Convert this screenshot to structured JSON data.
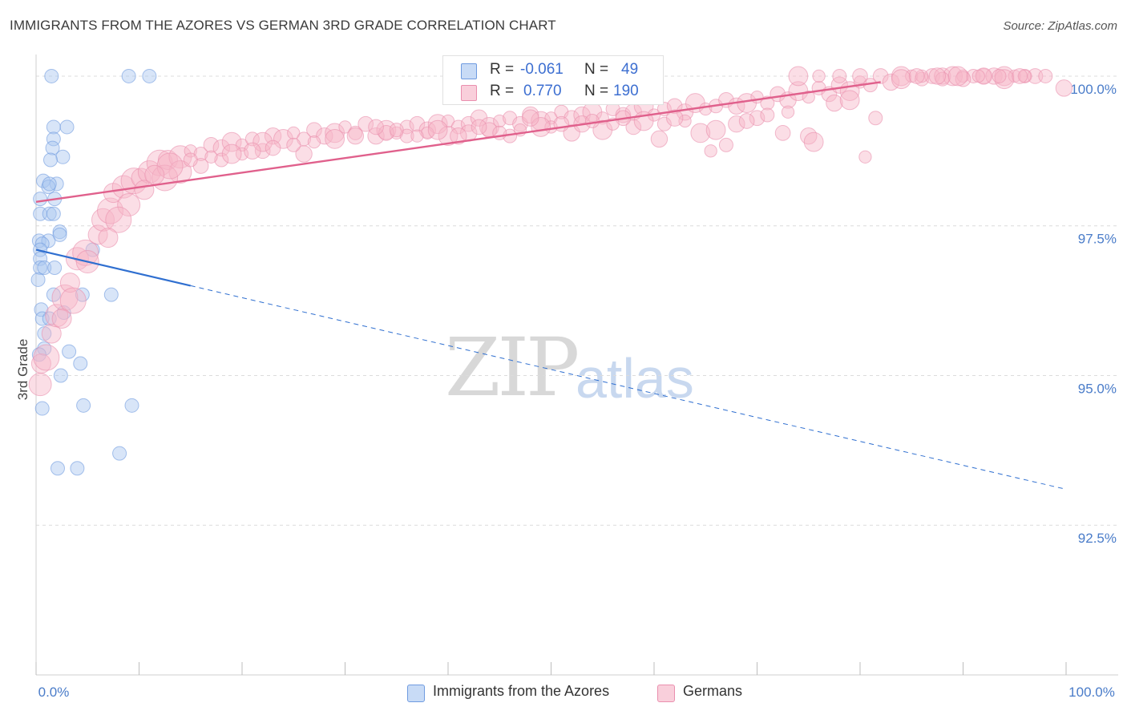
{
  "title": "IMMIGRANTS FROM THE AZORES VS GERMAN 3RD GRADE CORRELATION CHART",
  "source": "Source: ZipAtlas.com",
  "watermark": {
    "zip": "ZIP",
    "atlas": "atlas"
  },
  "legend_top": {
    "rows": [
      {
        "r_label": "R =",
        "r_value": "-0.061",
        "n_label": "N =",
        "n_value": "49",
        "color": "#a9c6f0"
      },
      {
        "r_label": "R =",
        "r_value": "0.770",
        "n_label": "N =",
        "n_value": "190",
        "color": "#f6b6c8"
      }
    ]
  },
  "legend_bottom": {
    "items": [
      {
        "label": "Immigrants from the Azores",
        "color": "#a9c6f0"
      },
      {
        "label": "Germans",
        "color": "#f6b6c8"
      }
    ]
  },
  "chart_data": {
    "type": "scatter",
    "title": "IMMIGRANTS FROM THE AZORES VS GERMAN 3RD GRADE CORRELATION CHART",
    "xlabel": "",
    "ylabel": "3rd Grade",
    "xlim": [
      0,
      100
    ],
    "ylim": [
      90.0,
      100.2
    ],
    "x_tick_labels": [
      {
        "value": 0,
        "label": "0.0%"
      },
      {
        "value": 100,
        "label": "100.0%"
      }
    ],
    "x_minor_ticks": [
      0,
      10,
      20,
      30,
      40,
      50,
      60,
      70,
      80,
      90,
      100
    ],
    "y_ticks": [
      {
        "value": 100.0,
        "label": "100.0%"
      },
      {
        "value": 97.5,
        "label": "97.5%"
      },
      {
        "value": 95.0,
        "label": "95.0%"
      },
      {
        "value": 92.5,
        "label": "92.5%"
      }
    ],
    "grid": true,
    "series": [
      {
        "name": "Immigrants from the Azores",
        "color": "#a9c6f0",
        "edge": "#6f9be0",
        "trend": {
          "x0": 0,
          "y0": 97.1,
          "x1": 15,
          "y1": 96.5,
          "dash_to_x": 100,
          "dash_to_y": 93.1,
          "color": "#2f6fd0"
        },
        "points": [
          [
            1.5,
            100.0
          ],
          [
            9,
            100.0
          ],
          [
            11,
            100.0
          ],
          [
            1.7,
            99.15
          ],
          [
            3,
            99.15
          ],
          [
            1.7,
            98.95
          ],
          [
            1.6,
            98.8
          ],
          [
            2.6,
            98.65
          ],
          [
            1.4,
            98.6
          ],
          [
            0.7,
            98.25
          ],
          [
            2,
            98.2
          ],
          [
            1.2,
            98.15
          ],
          [
            1.3,
            98.2
          ],
          [
            0.4,
            97.95
          ],
          [
            1.8,
            97.95
          ],
          [
            0.4,
            97.7
          ],
          [
            1.3,
            97.7
          ],
          [
            1.7,
            97.7
          ],
          [
            2.3,
            97.4
          ],
          [
            2.3,
            97.35
          ],
          [
            0.3,
            97.25
          ],
          [
            1.2,
            97.25
          ],
          [
            0.6,
            97.2
          ],
          [
            0.4,
            97.1
          ],
          [
            5.5,
            97.1
          ],
          [
            0.4,
            96.95
          ],
          [
            0.4,
            96.8
          ],
          [
            0.8,
            96.8
          ],
          [
            1.8,
            96.8
          ],
          [
            1.7,
            96.35
          ],
          [
            4.5,
            96.35
          ],
          [
            7.3,
            96.35
          ],
          [
            0.5,
            96.1
          ],
          [
            0.6,
            95.95
          ],
          [
            2.7,
            96.05
          ],
          [
            1.3,
            95.95
          ],
          [
            0.8,
            95.7
          ],
          [
            0.8,
            95.45
          ],
          [
            3.2,
            95.4
          ],
          [
            0.3,
            95.35
          ],
          [
            4.3,
            95.2
          ],
          [
            2.4,
            95.0
          ],
          [
            0.6,
            94.45
          ],
          [
            4.6,
            94.5
          ],
          [
            9.3,
            94.5
          ],
          [
            8.1,
            93.7
          ],
          [
            4,
            93.45
          ],
          [
            2.1,
            93.45
          ],
          [
            0.2,
            96.6
          ]
        ]
      },
      {
        "name": "Germans",
        "color": "#f6b6c8",
        "edge": "#ea8fae",
        "trend": {
          "x0": 0,
          "y0": 97.9,
          "x1": 82,
          "y1": 99.9,
          "color": "#e0608c"
        },
        "points": [
          [
            0.5,
            95.2
          ],
          [
            0.4,
            94.85
          ],
          [
            1,
            95.3
          ],
          [
            1.5,
            95.7
          ],
          [
            2,
            96.0
          ],
          [
            2.8,
            96.3
          ],
          [
            3.3,
            96.55
          ],
          [
            4,
            96.95
          ],
          [
            4.8,
            97.05
          ],
          [
            6,
            97.35
          ],
          [
            6.5,
            97.6
          ],
          [
            7.2,
            97.75
          ],
          [
            7.5,
            98.05
          ],
          [
            8.5,
            98.15
          ],
          [
            9.5,
            98.25
          ],
          [
            10.2,
            98.3
          ],
          [
            11,
            98.4
          ],
          [
            12,
            98.55
          ],
          [
            12.8,
            98.6
          ],
          [
            14,
            98.65
          ],
          [
            15,
            98.75
          ],
          [
            16,
            98.7
          ],
          [
            17,
            98.85
          ],
          [
            18,
            98.8
          ],
          [
            19,
            98.9
          ],
          [
            20,
            98.85
          ],
          [
            21,
            98.95
          ],
          [
            22,
            98.75
          ],
          [
            23,
            99.0
          ],
          [
            24,
            98.95
          ],
          [
            25,
            99.05
          ],
          [
            26,
            98.95
          ],
          [
            27,
            99.1
          ],
          [
            28,
            99.0
          ],
          [
            29,
            99.05
          ],
          [
            30,
            99.15
          ],
          [
            31,
            99.05
          ],
          [
            32,
            99.2
          ],
          [
            33,
            99.0
          ],
          [
            34,
            99.1
          ],
          [
            35,
            99.05
          ],
          [
            36,
            99.15
          ],
          [
            37,
            99.2
          ],
          [
            38,
            99.1
          ],
          [
            39,
            99.2
          ],
          [
            40,
            99.25
          ],
          [
            41,
            99.15
          ],
          [
            42,
            99.2
          ],
          [
            43,
            99.3
          ],
          [
            44,
            99.15
          ],
          [
            45,
            99.25
          ],
          [
            46,
            99.3
          ],
          [
            47,
            99.2
          ],
          [
            48,
            99.35
          ],
          [
            49,
            99.25
          ],
          [
            50,
            99.3
          ],
          [
            51,
            99.4
          ],
          [
            52,
            99.3
          ],
          [
            53,
            99.35
          ],
          [
            54,
            99.4
          ],
          [
            55,
            99.3
          ],
          [
            56,
            99.45
          ],
          [
            57,
            99.35
          ],
          [
            58,
            99.4
          ],
          [
            59,
            99.5
          ],
          [
            60,
            99.35
          ],
          [
            61,
            99.45
          ],
          [
            62,
            99.5
          ],
          [
            63,
            99.4
          ],
          [
            64,
            99.55
          ],
          [
            65,
            99.45
          ],
          [
            66,
            99.5
          ],
          [
            67,
            99.6
          ],
          [
            68,
            99.5
          ],
          [
            69,
            99.55
          ],
          [
            70,
            99.65
          ],
          [
            71,
            99.55
          ],
          [
            72,
            99.7
          ],
          [
            73,
            99.6
          ],
          [
            74,
            99.75
          ],
          [
            75,
            99.65
          ],
          [
            76,
            99.8
          ],
          [
            77,
            99.7
          ],
          [
            78,
            99.85
          ],
          [
            79,
            99.75
          ],
          [
            80,
            99.9
          ],
          [
            81,
            99.85
          ],
          [
            82,
            100.0
          ],
          [
            83,
            99.9
          ],
          [
            84,
            100.0
          ],
          [
            85,
            100.0
          ],
          [
            86,
            99.95
          ],
          [
            87,
            100.0
          ],
          [
            88,
            100.0
          ],
          [
            89,
            100.0
          ],
          [
            90,
            100.0
          ],
          [
            91,
            100.0
          ],
          [
            92,
            100.0
          ],
          [
            93,
            100.0
          ],
          [
            94,
            100.0
          ],
          [
            95,
            100.0
          ],
          [
            96,
            100.0
          ],
          [
            97,
            100.0
          ],
          [
            99.8,
            99.8
          ],
          [
            74,
            100.0
          ],
          [
            76,
            100.0
          ],
          [
            78,
            100.0
          ],
          [
            80,
            100.0
          ],
          [
            60.5,
            98.95
          ],
          [
            64.5,
            99.05
          ],
          [
            65.5,
            98.75
          ],
          [
            67,
            98.85
          ],
          [
            72.5,
            99.05
          ],
          [
            75,
            99.0
          ],
          [
            75.5,
            98.9
          ],
          [
            80.5,
            98.65
          ],
          [
            81.5,
            99.3
          ],
          [
            58,
            99.15
          ],
          [
            52,
            99.05
          ],
          [
            55,
            99.1
          ],
          [
            50,
            99.15
          ],
          [
            46,
            99.0
          ],
          [
            44,
            99.1
          ],
          [
            42,
            99.05
          ],
          [
            40,
            99.0
          ],
          [
            38,
            99.05
          ],
          [
            36,
            99.0
          ],
          [
            34,
            99.05
          ],
          [
            26,
            98.7
          ],
          [
            22,
            98.9
          ],
          [
            20,
            98.7
          ],
          [
            18,
            98.6
          ],
          [
            16,
            98.5
          ],
          [
            14,
            98.4
          ],
          [
            12.5,
            98.3
          ],
          [
            10.5,
            98.1
          ],
          [
            9,
            97.85
          ],
          [
            8,
            97.6
          ],
          [
            7,
            97.3
          ],
          [
            5,
            96.9
          ],
          [
            3.6,
            96.25
          ],
          [
            2.5,
            95.95
          ],
          [
            70,
            99.3
          ],
          [
            68,
            99.2
          ],
          [
            66,
            99.1
          ],
          [
            63,
            99.25
          ],
          [
            61,
            99.2
          ],
          [
            57,
            99.3
          ],
          [
            53,
            99.2
          ],
          [
            49,
            99.15
          ],
          [
            47,
            99.1
          ],
          [
            45,
            99.05
          ],
          [
            43,
            99.15
          ],
          [
            41,
            99.0
          ],
          [
            39,
            99.1
          ],
          [
            37,
            99.0
          ],
          [
            35,
            99.1
          ],
          [
            33,
            99.15
          ],
          [
            31,
            99.0
          ],
          [
            29,
            98.95
          ],
          [
            27,
            98.9
          ],
          [
            25,
            98.85
          ],
          [
            23,
            98.8
          ],
          [
            21,
            98.75
          ],
          [
            19,
            98.7
          ],
          [
            17,
            98.65
          ],
          [
            15,
            98.6
          ],
          [
            13,
            98.5
          ],
          [
            11.5,
            98.35
          ],
          [
            84,
            99.95
          ],
          [
            86,
            100.0
          ],
          [
            88,
            99.95
          ],
          [
            90,
            99.95
          ],
          [
            92,
            100.0
          ],
          [
            94,
            99.95
          ],
          [
            96,
            100.0
          ],
          [
            98,
            100.0
          ],
          [
            85.5,
            100.0
          ],
          [
            87.5,
            100.0
          ],
          [
            89.5,
            100.0
          ],
          [
            91.5,
            100.0
          ],
          [
            93.5,
            100.0
          ],
          [
            95.5,
            100.0
          ],
          [
            77.5,
            99.55
          ],
          [
            79,
            99.6
          ],
          [
            73,
            99.4
          ],
          [
            71,
            99.35
          ],
          [
            69,
            99.25
          ],
          [
            62,
            99.3
          ],
          [
            59,
            99.25
          ],
          [
            56,
            99.2
          ],
          [
            54,
            99.25
          ],
          [
            51,
            99.2
          ],
          [
            48,
            99.3
          ]
        ]
      }
    ]
  }
}
